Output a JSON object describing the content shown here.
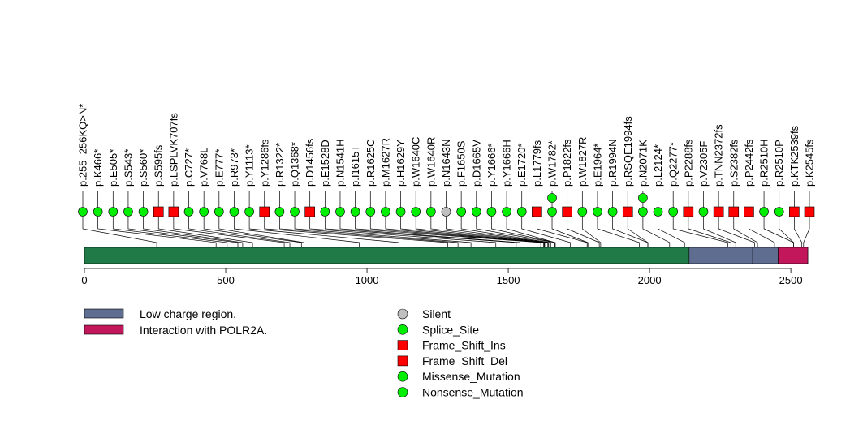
{
  "chart_data": {
    "type": "lollipop",
    "protein_length": 2560,
    "axis_ticks": [
      0,
      500,
      1000,
      1500,
      2000,
      2500
    ],
    "domains": [
      {
        "name": "Low charge region.",
        "start": 2140,
        "end": 2365,
        "color": "#5f6d91"
      },
      {
        "name": "Low charge region.",
        "start": 2365,
        "end": 2455,
        "color": "#5f6d91"
      },
      {
        "name": "Interaction with POLR2A.",
        "start": 2455,
        "end": 2560,
        "color": "#c2185b"
      }
    ],
    "backbone_color": "#1f7a47",
    "domain_legend": [
      {
        "label": "Low charge region.",
        "color": "#5f6d91"
      },
      {
        "label": "Interaction with POLR2A.",
        "color": "#c2185b"
      }
    ],
    "type_legend": [
      {
        "label": "Silent",
        "color": "#c0c0c0",
        "shape": "circle"
      },
      {
        "label": "Splice_Site",
        "color": "#00ee00",
        "shape": "circle"
      },
      {
        "label": "Frame_Shift_Ins",
        "color": "#ff0000",
        "shape": "square"
      },
      {
        "label": "Frame_Shift_Del",
        "color": "#ff0000",
        "shape": "square"
      },
      {
        "label": "Missense_Mutation",
        "color": "#00ee00",
        "shape": "circle"
      },
      {
        "label": "Nonsense_Mutation",
        "color": "#00ee00",
        "shape": "circle"
      }
    ],
    "mutations": [
      {
        "label": "p.255_256KQ>N*",
        "pos": 256,
        "shape": "circle",
        "color": "#00ee00",
        "count": 1
      },
      {
        "label": "p.K466*",
        "pos": 466,
        "shape": "circle",
        "color": "#00ee00",
        "count": 1
      },
      {
        "label": "p.E505*",
        "pos": 505,
        "shape": "circle",
        "color": "#00ee00",
        "count": 1
      },
      {
        "label": "p.S543*",
        "pos": 543,
        "shape": "circle",
        "color": "#00ee00",
        "count": 1
      },
      {
        "label": "p.S560*",
        "pos": 560,
        "shape": "circle",
        "color": "#00ee00",
        "count": 1
      },
      {
        "label": "p.S595fs",
        "pos": 595,
        "shape": "square",
        "color": "#ff0000",
        "count": 1
      },
      {
        "label": "p.LSPLVK707fs",
        "pos": 707,
        "shape": "square",
        "color": "#ff0000",
        "count": 1
      },
      {
        "label": "p.C727*",
        "pos": 727,
        "shape": "circle",
        "color": "#00ee00",
        "count": 1
      },
      {
        "label": "p.V768L",
        "pos": 768,
        "shape": "circle",
        "color": "#00ee00",
        "count": 1
      },
      {
        "label": "p.E777*",
        "pos": 777,
        "shape": "circle",
        "color": "#00ee00",
        "count": 1
      },
      {
        "label": "p.R973*",
        "pos": 973,
        "shape": "circle",
        "color": "#00ee00",
        "count": 1
      },
      {
        "label": "p.Y1113*",
        "pos": 1113,
        "shape": "circle",
        "color": "#00ee00",
        "count": 1
      },
      {
        "label": "p.Y1286fs",
        "pos": 1286,
        "shape": "square",
        "color": "#ff0000",
        "count": 1
      },
      {
        "label": "p.R1322*",
        "pos": 1322,
        "shape": "circle",
        "color": "#00ee00",
        "count": 1
      },
      {
        "label": "p.Q1368*",
        "pos": 1368,
        "shape": "circle",
        "color": "#00ee00",
        "count": 1
      },
      {
        "label": "p.D1456fs",
        "pos": 1456,
        "shape": "square",
        "color": "#ff0000",
        "count": 1
      },
      {
        "label": "p.E1528D",
        "pos": 1528,
        "shape": "circle",
        "color": "#00ee00",
        "count": 1
      },
      {
        "label": "p.N1541H",
        "pos": 1541,
        "shape": "circle",
        "color": "#00ee00",
        "count": 1
      },
      {
        "label": "p.I1615T",
        "pos": 1615,
        "shape": "circle",
        "color": "#00ee00",
        "count": 1
      },
      {
        "label": "p.R1625C",
        "pos": 1625,
        "shape": "circle",
        "color": "#00ee00",
        "count": 1
      },
      {
        "label": "p.M1627R",
        "pos": 1627,
        "shape": "circle",
        "color": "#00ee00",
        "count": 1
      },
      {
        "label": "p.H1629Y",
        "pos": 1629,
        "shape": "circle",
        "color": "#00ee00",
        "count": 1
      },
      {
        "label": "p.W1640C",
        "pos": 1640,
        "shape": "circle",
        "color": "#00ee00",
        "count": 1
      },
      {
        "label": "p.W1640R",
        "pos": 1640,
        "shape": "circle",
        "color": "#00ee00",
        "count": 1
      },
      {
        "label": "p.N1643N",
        "pos": 1643,
        "shape": "circle",
        "color": "#c0c0c0",
        "count": 1
      },
      {
        "label": "p.F1650S",
        "pos": 1650,
        "shape": "circle",
        "color": "#00ee00",
        "count": 1
      },
      {
        "label": "p.D1665V",
        "pos": 1665,
        "shape": "circle",
        "color": "#00ee00",
        "count": 1
      },
      {
        "label": "p.Y1666*",
        "pos": 1666,
        "shape": "circle",
        "color": "#00ee00",
        "count": 1
      },
      {
        "label": "p.Y1666H",
        "pos": 1666,
        "shape": "circle",
        "color": "#00ee00",
        "count": 1
      },
      {
        "label": "p.E1720*",
        "pos": 1720,
        "shape": "circle",
        "color": "#00ee00",
        "count": 1
      },
      {
        "label": "p.L1779fs",
        "pos": 1779,
        "shape": "square",
        "color": "#ff0000",
        "count": 1
      },
      {
        "label": "p.W1782*",
        "pos": 1782,
        "shape": "circle",
        "color": "#00ee00",
        "count": 2
      },
      {
        "label": "p.P1822fs",
        "pos": 1822,
        "shape": "square",
        "color": "#ff0000",
        "count": 1
      },
      {
        "label": "p.W1827R",
        "pos": 1827,
        "shape": "circle",
        "color": "#00ee00",
        "count": 1
      },
      {
        "label": "p.E1964*",
        "pos": 1964,
        "shape": "circle",
        "color": "#00ee00",
        "count": 1
      },
      {
        "label": "p.R1994N",
        "pos": 1994,
        "shape": "circle",
        "color": "#00ee00",
        "count": 1
      },
      {
        "label": "p.RSQE1994fs",
        "pos": 1994,
        "shape": "square",
        "color": "#ff0000",
        "count": 1
      },
      {
        "label": "p.N2071K",
        "pos": 2071,
        "shape": "circle",
        "color": "#00ee00",
        "count": 2
      },
      {
        "label": "p.L2124*",
        "pos": 2124,
        "shape": "circle",
        "color": "#00ee00",
        "count": 1
      },
      {
        "label": "p.Q2277*",
        "pos": 2277,
        "shape": "circle",
        "color": "#00ee00",
        "count": 1
      },
      {
        "label": "p.P2288fs",
        "pos": 2288,
        "shape": "square",
        "color": "#ff0000",
        "count": 1
      },
      {
        "label": "p.V2305F",
        "pos": 2305,
        "shape": "circle",
        "color": "#00ee00",
        "count": 1
      },
      {
        "label": "p.TNN2372fs",
        "pos": 2372,
        "shape": "square",
        "color": "#ff0000",
        "count": 1
      },
      {
        "label": "p.S2382fs",
        "pos": 2382,
        "shape": "square",
        "color": "#ff0000",
        "count": 1
      },
      {
        "label": "p.P2442fs",
        "pos": 2442,
        "shape": "square",
        "color": "#ff0000",
        "count": 1
      },
      {
        "label": "p.R2510H",
        "pos": 2510,
        "shape": "circle",
        "color": "#00ee00",
        "count": 1
      },
      {
        "label": "p.R2510P",
        "pos": 2510,
        "shape": "circle",
        "color": "#00ee00",
        "count": 1
      },
      {
        "label": "p.KTK2539fs",
        "pos": 2539,
        "shape": "square",
        "color": "#ff0000",
        "count": 1
      },
      {
        "label": "p.K2545fs",
        "pos": 2545,
        "shape": "square",
        "color": "#ff0000",
        "count": 1
      }
    ]
  }
}
